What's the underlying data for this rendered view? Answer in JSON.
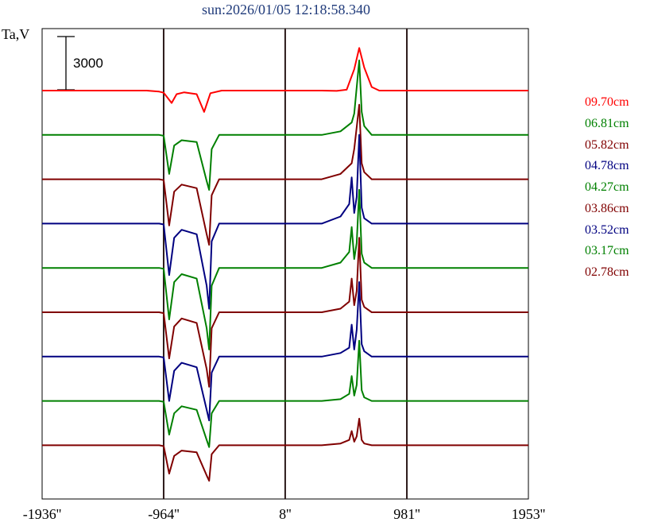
{
  "title": "sun:2026/01/05 12:18:58.340",
  "ylabel": "Ta,V",
  "scale_bar_label": "3000",
  "chart_data": {
    "type": "line",
    "title": "sun:2026/01/05 12:18:58.340",
    "ylabel": "Ta,V",
    "xlabel": "",
    "x_ticks": [
      "-1936''",
      "-964''",
      "8''",
      "981''",
      "1953''"
    ],
    "x_tick_values": [
      -1936,
      -964,
      8,
      981,
      1953
    ],
    "xlim": [
      -1936,
      1953
    ],
    "vertical_lines": [
      -964,
      8,
      981
    ],
    "scale_bar": 3000,
    "grid": false,
    "legend_position": "right",
    "series": [
      {
        "name": "09.70cm",
        "color": "#ff0000",
        "x": [
          -1936,
          -1100,
          -1000,
          -964,
          -900,
          -860,
          -800,
          -700,
          -640,
          -590,
          -500,
          -200,
          8,
          300,
          420,
          500,
          560,
          600,
          640,
          700,
          760,
          800,
          981,
          1953
        ],
        "y": [
          0,
          0,
          -60,
          -120,
          -700,
          -200,
          -100,
          -200,
          -1200,
          -150,
          0,
          0,
          0,
          0,
          -20,
          50,
          1200,
          2400,
          1300,
          200,
          0,
          0,
          0,
          0
        ]
      },
      {
        "name": "06.81cm",
        "color": "#008000",
        "x": [
          -1936,
          -1000,
          -964,
          -920,
          -880,
          -820,
          -700,
          -620,
          -600,
          -580,
          -520,
          8,
          300,
          450,
          540,
          560,
          600,
          620,
          640,
          700,
          981,
          1953
        ],
        "y": [
          0,
          0,
          -50,
          -2200,
          -600,
          -300,
          -400,
          -2600,
          -3100,
          -800,
          0,
          0,
          0,
          200,
          700,
          1200,
          4200,
          1300,
          500,
          0,
          0,
          0
        ]
      },
      {
        "name": "05.82cm",
        "color": "#800000",
        "x": [
          -1936,
          -1000,
          -964,
          -920,
          -880,
          -820,
          -700,
          -620,
          -600,
          -580,
          -520,
          8,
          300,
          450,
          540,
          560,
          600,
          620,
          640,
          700,
          981,
          1953
        ],
        "y": [
          0,
          0,
          -50,
          -2600,
          -700,
          -300,
          -500,
          -3100,
          -3700,
          -900,
          0,
          0,
          0,
          300,
          900,
          1700,
          4200,
          900,
          400,
          0,
          0,
          0
        ]
      },
      {
        "name": "04.78cm",
        "color": "#000080",
        "x": [
          -1936,
          -1000,
          -964,
          -920,
          -880,
          -820,
          -700,
          -620,
          -600,
          -580,
          -520,
          8,
          300,
          450,
          520,
          540,
          560,
          580,
          600,
          620,
          640,
          700,
          981,
          1953
        ],
        "y": [
          0,
          0,
          -50,
          -2900,
          -800,
          -350,
          -600,
          -3500,
          -4800,
          -1000,
          0,
          0,
          0,
          400,
          1100,
          2600,
          600,
          1500,
          5000,
          900,
          300,
          0,
          0,
          0
        ]
      },
      {
        "name": "04.27cm",
        "color": "#008000",
        "x": [
          -1936,
          -1000,
          -964,
          -920,
          -880,
          -820,
          -700,
          -620,
          -600,
          -580,
          -520,
          8,
          300,
          450,
          520,
          540,
          560,
          580,
          600,
          620,
          640,
          700,
          981,
          1953
        ],
        "y": [
          0,
          0,
          -50,
          -2900,
          -800,
          -350,
          -600,
          -3400,
          -4600,
          -1000,
          0,
          0,
          0,
          300,
          900,
          2300,
          500,
          1400,
          4400,
          800,
          300,
          0,
          0,
          0
        ]
      },
      {
        "name": "03.86cm",
        "color": "#800000",
        "x": [
          -1936,
          -1000,
          -964,
          -920,
          -880,
          -820,
          -700,
          -620,
          -600,
          -580,
          -520,
          8,
          300,
          450,
          520,
          540,
          560,
          580,
          600,
          620,
          640,
          700,
          981,
          1953
        ],
        "y": [
          0,
          0,
          -50,
          -2600,
          -800,
          -350,
          -600,
          -3200,
          -4200,
          -900,
          0,
          0,
          0,
          200,
          600,
          1900,
          400,
          1200,
          4200,
          700,
          300,
          0,
          0,
          0
        ]
      },
      {
        "name": "03.52cm",
        "color": "#000080",
        "x": [
          -1936,
          -1000,
          -964,
          -920,
          -880,
          -820,
          -700,
          -620,
          -600,
          -580,
          -520,
          8,
          300,
          450,
          520,
          540,
          560,
          580,
          600,
          620,
          640,
          700,
          981,
          1953
        ],
        "y": [
          0,
          0,
          -50,
          -2500,
          -800,
          -350,
          -600,
          -3000,
          -3600,
          -900,
          0,
          0,
          0,
          200,
          500,
          1800,
          400,
          1500,
          4200,
          700,
          300,
          0,
          0,
          0
        ]
      },
      {
        "name": "03.17cm",
        "color": "#008000",
        "x": [
          -1936,
          -1000,
          -964,
          -920,
          -880,
          -820,
          -700,
          -620,
          -600,
          -580,
          -520,
          8,
          300,
          450,
          520,
          540,
          560,
          580,
          600,
          620,
          640,
          700,
          981,
          1953
        ],
        "y": [
          0,
          0,
          -50,
          -1900,
          -700,
          -300,
          -500,
          -2200,
          -2600,
          -700,
          0,
          0,
          0,
          100,
          400,
          1400,
          300,
          900,
          3400,
          600,
          200,
          0,
          0,
          0
        ]
      },
      {
        "name": "02.78cm",
        "color": "#800000",
        "x": [
          -1936,
          -1000,
          -964,
          -920,
          -880,
          -820,
          -700,
          -620,
          -600,
          -580,
          -520,
          8,
          300,
          450,
          520,
          540,
          560,
          580,
          600,
          620,
          640,
          700,
          981,
          1953
        ],
        "y": [
          0,
          0,
          -50,
          -1600,
          -600,
          -300,
          -400,
          -1700,
          -2000,
          -500,
          0,
          0,
          0,
          100,
          300,
          800,
          200,
          500,
          1500,
          300,
          100,
          0,
          0,
          0
        ]
      }
    ]
  }
}
